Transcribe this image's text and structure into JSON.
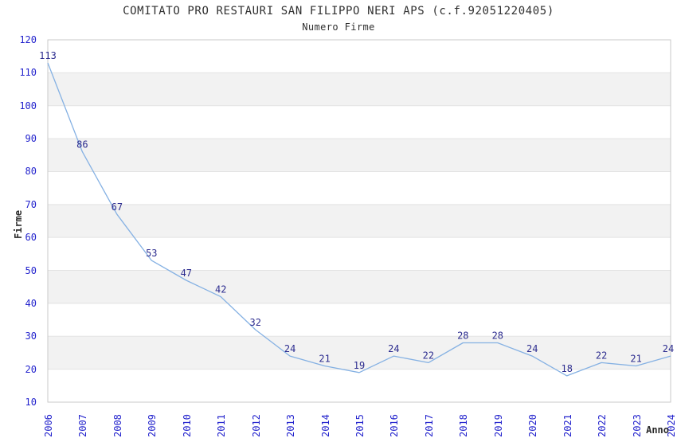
{
  "chart_data": {
    "type": "line",
    "title": "COMITATO PRO RESTAURI SAN FILIPPO NERI APS (c.f.92051220405)",
    "subtitle": "Numero Firme",
    "xlabel": "Anno",
    "ylabel": "Firme",
    "categories": [
      "2006",
      "2007",
      "2008",
      "2009",
      "2010",
      "2011",
      "2012",
      "2013",
      "2014",
      "2015",
      "2016",
      "2017",
      "2018",
      "2019",
      "2020",
      "2021",
      "2022",
      "2023",
      "2024"
    ],
    "values": [
      113,
      86,
      67,
      53,
      47,
      42,
      32,
      24,
      21,
      19,
      24,
      22,
      28,
      28,
      24,
      18,
      22,
      21,
      24
    ],
    "ylim": [
      10,
      120
    ],
    "ytick_step": 10,
    "grid": true,
    "legend": "none",
    "colors": {
      "line": "#85b1e3",
      "band": "#f2f2f2",
      "gridline": "#e3e3e3",
      "border": "#c9c9c9",
      "tick_label": "#2323cd",
      "point_label": "#2c2c8f",
      "text": "#303030"
    }
  }
}
